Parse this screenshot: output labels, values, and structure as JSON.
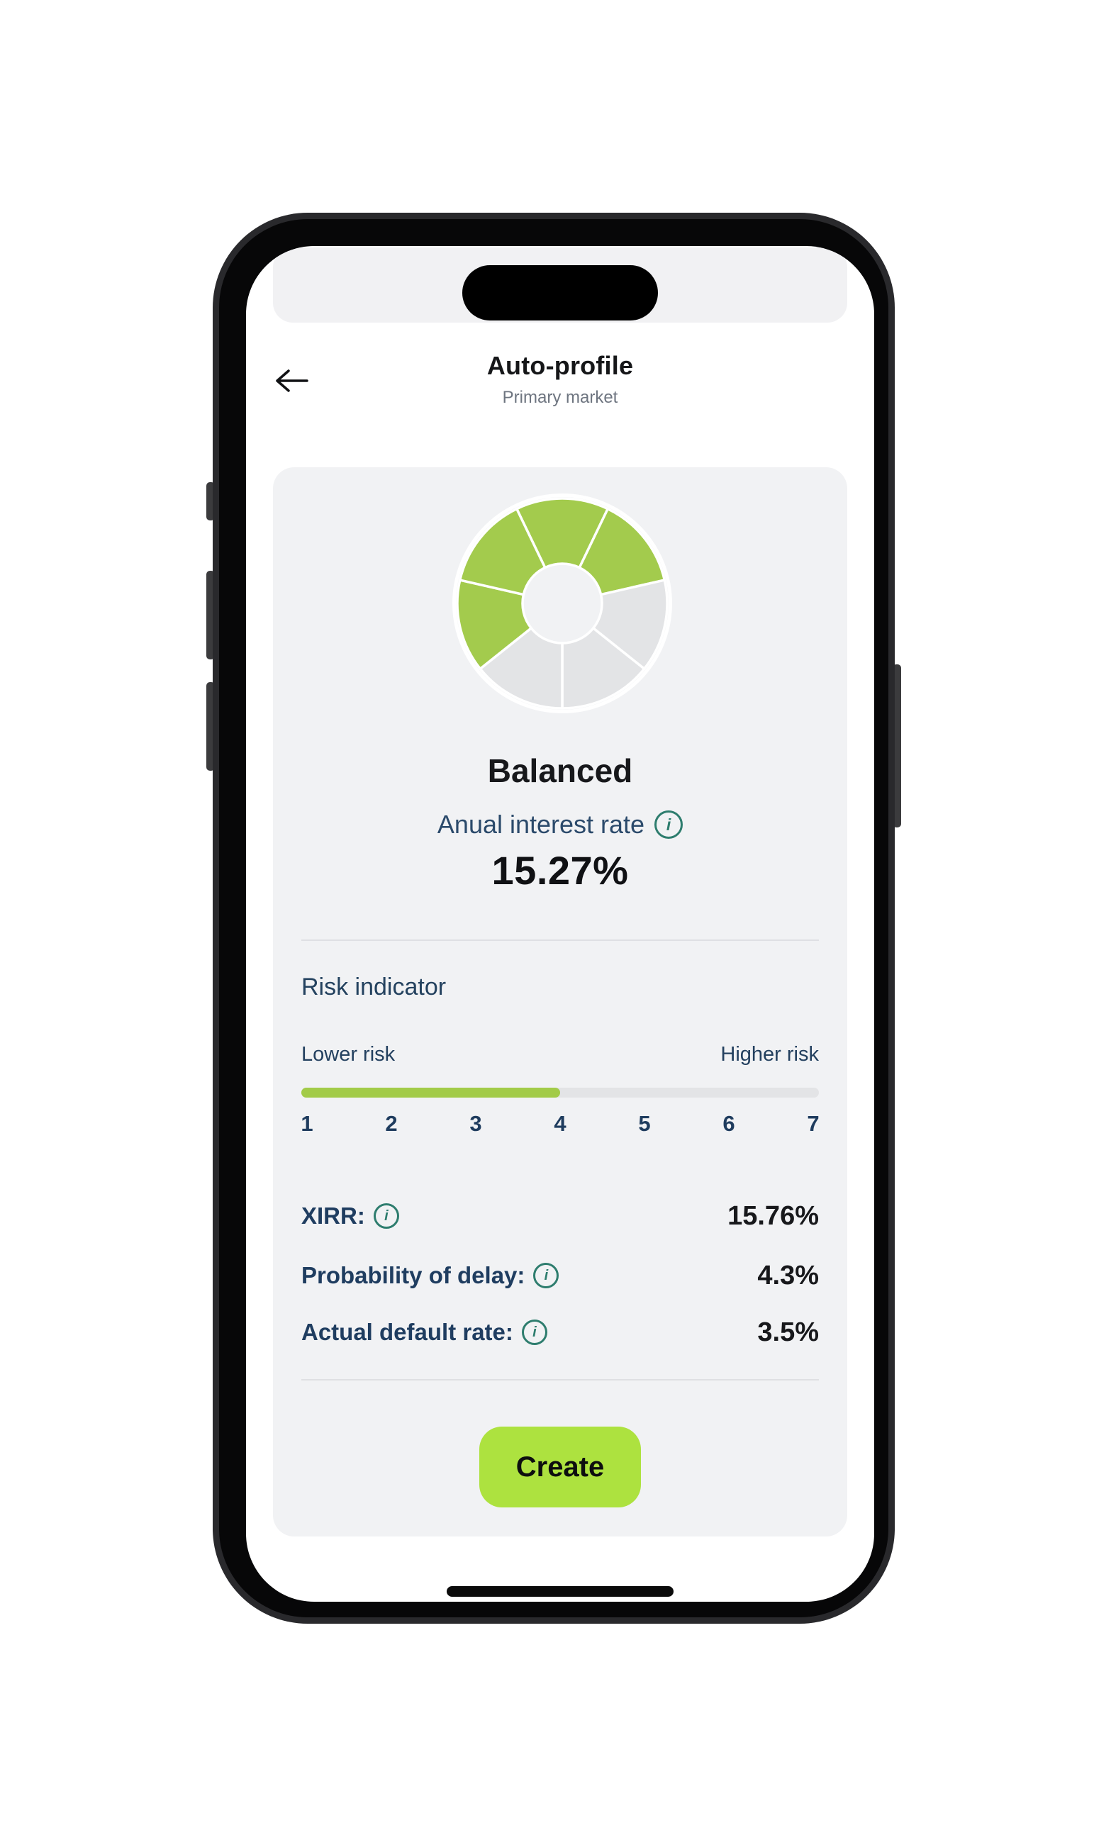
{
  "screen": {
    "header": {
      "title": "Auto-profile",
      "subtitle": "Primary market"
    },
    "profile": {
      "name": "Balanced",
      "interest_label": "Anual interest rate",
      "interest_value": "15.27%"
    },
    "risk": {
      "section_title": "Risk indicator",
      "lower_label": "Lower risk",
      "higher_label": "Higher risk",
      "min": 1,
      "max": 7,
      "value": 4,
      "scale": [
        "1",
        "2",
        "3",
        "4",
        "5",
        "6",
        "7"
      ]
    },
    "stats": {
      "rows": [
        {
          "label": "XIRR:",
          "value": "15.76%"
        },
        {
          "label": "Probability of delay:",
          "value": "4.3%"
        },
        {
          "label": "Actual default rate:",
          "value": "3.5%"
        }
      ]
    },
    "create_button_label": "Create"
  },
  "donut": {
    "type": "donut",
    "segments_total": 7,
    "segments_active": 4,
    "segments": [
      {
        "position": "top",
        "active": true
      },
      {
        "position": "upper-right",
        "active": true
      },
      {
        "position": "right",
        "active": false
      },
      {
        "position": "bottom-right",
        "active": false
      },
      {
        "position": "bottom-left",
        "active": false
      },
      {
        "position": "left",
        "active": true
      },
      {
        "position": "upper-left",
        "active": true
      }
    ]
  },
  "icons": {
    "info_glyph": "i"
  },
  "colors": {
    "donut-green": "#a3cb4d",
    "donut-gray": "#e3e4e6",
    "progress-green": "#a2cb48",
    "track-gray": "#e3e4e6",
    "button-green": "#ade23f",
    "teal": "#2e7d6e",
    "navy": "#1f3d60",
    "card-bg": "#f1f2f4"
  }
}
